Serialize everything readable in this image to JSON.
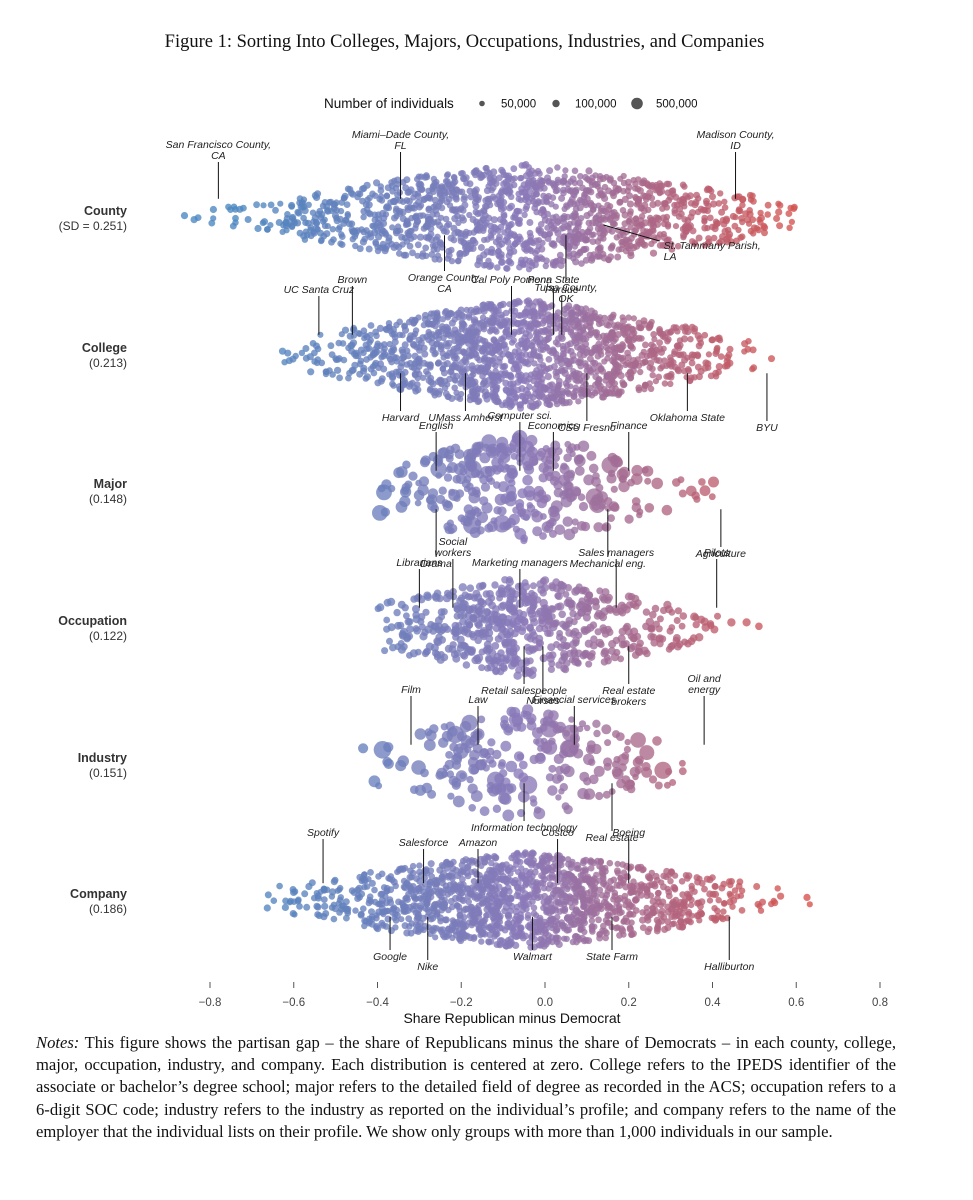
{
  "figure": {
    "title": "Figure 1: Sorting Into Colleges, Majors, Occupations, Industries, and Companies",
    "notes_lead": "Notes:",
    "notes_body": "This figure shows the partisan gap – the share of Republicans minus the share of Democrats – in each county, college, major, occupation, industry, and company. Each distribution is centered at zero. College refers to the IPEDS identifier of the associate or bachelor’s degree school; major refers to the detailed field of degree as recorded in the ACS; occupation refers to a 6-digit SOC code; industry refers to the industry as reported on the individual’s profile; and company refers to the name of the employer that the individual lists on their profile. We show only groups with more than 1,000 individuals in our sample."
  },
  "chart_data": {
    "type": "scatter",
    "subtype": "beeswarm",
    "xlabel": "Share Republican minus Democrat",
    "xlim": [
      -0.8,
      0.8
    ],
    "xticks": [
      -0.8,
      -0.6,
      -0.4,
      -0.2,
      0.0,
      0.2,
      0.4,
      0.6,
      0.8
    ],
    "xtick_labels": [
      "−0.8",
      "−0.6",
      "−0.4",
      "−0.2",
      "0.0",
      "0.2",
      "0.4",
      "0.6",
      "0.8"
    ],
    "color_scale": {
      "low": "#4a86c0",
      "mid": "#8a79b8",
      "high": "#df4c3d"
    },
    "legend": {
      "title": "Number of individuals",
      "entries": [
        {
          "label": "50,000",
          "value": 50000
        },
        {
          "label": "100,000",
          "value": 100000
        },
        {
          "label": "500,000",
          "value": 500000
        }
      ]
    },
    "rows": [
      {
        "name": "County",
        "sd_label": "(SD = 0.251)",
        "sd": 0.251,
        "range": [
          -0.9,
          0.6
        ],
        "density": 1.0,
        "spread": 0.62,
        "count": 1400,
        "size": "small",
        "labels": [
          {
            "text": "San Francisco County, CA",
            "lines": [
              "San Francisco County,",
              "CA"
            ],
            "x": -0.78,
            "pos": "above"
          },
          {
            "text": "Miami–Dade County, FL",
            "lines": [
              "Miami–Dade County,",
              "FL"
            ],
            "x": -0.345,
            "pos": "above"
          },
          {
            "text": "Orange County, CA",
            "lines": [
              "Orange County,",
              "CA"
            ],
            "x": -0.24,
            "pos": "below"
          },
          {
            "text": "Tulsa County, OK",
            "lines": [
              "Tulsa County,",
              "OK"
            ],
            "x": 0.05,
            "pos": "below"
          },
          {
            "text": "St. Tammany Parish, LA",
            "lines": [
              "St. Tammany Parish,",
              "LA"
            ],
            "x": 0.14,
            "pos": "right"
          },
          {
            "text": "Madison County, ID",
            "lines": [
              "Madison County,",
              "ID"
            ],
            "x": 0.455,
            "pos": "above"
          }
        ]
      },
      {
        "name": "College",
        "sd_label": "(0.213)",
        "sd": 0.213,
        "range": [
          -0.66,
          0.68
        ],
        "density": 1.0,
        "spread": 0.6,
        "count": 1500,
        "size": "small",
        "labels": [
          {
            "text": "UC Santa Cruz",
            "lines": [
              "UC Santa Cruz"
            ],
            "x": -0.54,
            "pos": "above"
          },
          {
            "text": "Brown",
            "lines": [
              "Brown"
            ],
            "x": -0.46,
            "pos": "above"
          },
          {
            "text": "Harvard",
            "lines": [
              "Harvard"
            ],
            "x": -0.345,
            "pos": "below"
          },
          {
            "text": "Cal Poly Pomona",
            "lines": [
              "Cal Poly Pomona"
            ],
            "x": -0.08,
            "pos": "above"
          },
          {
            "text": "UMass Amherst",
            "lines": [
              "UMass Amherst"
            ],
            "x": -0.19,
            "pos": "below"
          },
          {
            "text": "Penn State",
            "lines": [
              "Penn State"
            ],
            "x": 0.02,
            "pos": "above"
          },
          {
            "text": "Purdue",
            "lines": [
              "Purdue"
            ],
            "x": 0.04,
            "pos": "above"
          },
          {
            "text": "CSU Fresno",
            "lines": [
              "CSU Fresno"
            ],
            "x": 0.1,
            "pos": "below"
          },
          {
            "text": "Oklahoma State",
            "lines": [
              "Oklahoma State"
            ],
            "x": 0.34,
            "pos": "below"
          },
          {
            "text": "BYU",
            "lines": [
              "BYU"
            ],
            "x": 0.53,
            "pos": "below"
          }
        ]
      },
      {
        "name": "Major",
        "sd_label": "(0.148)",
        "sd": 0.148,
        "range": [
          -0.4,
          0.52
        ],
        "density": 0.55,
        "spread": 0.6,
        "count": 330,
        "size": "large",
        "labels": [
          {
            "text": "Economics",
            "lines": [
              "Economics"
            ],
            "x": 0.02,
            "pos": "above"
          },
          {
            "text": "Computer sci.",
            "lines": [
              "Computer sci."
            ],
            "x": -0.06,
            "pos": "above"
          },
          {
            "text": "English",
            "lines": [
              "English"
            ],
            "x": -0.26,
            "pos": "above"
          },
          {
            "text": "Drama",
            "lines": [
              "Drama"
            ],
            "x": -0.26,
            "pos": "below"
          },
          {
            "text": "Finance",
            "lines": [
              "Finance"
            ],
            "x": 0.2,
            "pos": "above"
          },
          {
            "text": "Mechanical eng.",
            "lines": [
              "Mechanical eng."
            ],
            "x": 0.15,
            "pos": "below"
          },
          {
            "text": "Agriculture",
            "lines": [
              "Agriculture"
            ],
            "x": 0.42,
            "pos": "below"
          }
        ]
      },
      {
        "name": "Occupation",
        "sd_label": "(0.122)",
        "sd": 0.122,
        "range": [
          -0.4,
          0.53
        ],
        "density": 0.8,
        "spread": 0.55,
        "count": 650,
        "size": "medium",
        "labels": [
          {
            "text": "Marketing managers",
            "lines": [
              "Marketing managers"
            ],
            "x": -0.06,
            "pos": "above"
          },
          {
            "text": "Social workers",
            "lines": [
              "Social",
              "workers"
            ],
            "x": -0.22,
            "pos": "above"
          },
          {
            "text": "Librarians",
            "lines": [
              "Librarians"
            ],
            "x": -0.3,
            "pos": "above"
          },
          {
            "text": "Nurses",
            "lines": [
              "Nurses"
            ],
            "x": -0.005,
            "pos": "below"
          },
          {
            "text": "Retail salespeople",
            "lines": [
              "Retail salespeople"
            ],
            "x": -0.05,
            "pos": "below"
          },
          {
            "text": "Sales managers",
            "lines": [
              "Sales managers"
            ],
            "x": 0.17,
            "pos": "above"
          },
          {
            "text": "Real estate brokers",
            "lines": [
              "Real estate",
              "brokers"
            ],
            "x": 0.2,
            "pos": "below"
          },
          {
            "text": "Pilots",
            "lines": [
              "Pilots"
            ],
            "x": 0.41,
            "pos": "above"
          }
        ]
      },
      {
        "name": "Industry",
        "sd_label": "(0.151)",
        "sd": 0.151,
        "range": [
          -0.44,
          0.49
        ],
        "density": 0.55,
        "spread": 0.6,
        "count": 240,
        "size": "large",
        "labels": [
          {
            "text": "Law",
            "lines": [
              "Law"
            ],
            "x": -0.16,
            "pos": "above"
          },
          {
            "text": "Film",
            "lines": [
              "Film"
            ],
            "x": -0.32,
            "pos": "above"
          },
          {
            "text": "Financial services",
            "lines": [
              "Financial services"
            ],
            "x": 0.07,
            "pos": "above"
          },
          {
            "text": "Oil and energy",
            "lines": [
              "Oil and",
              "energy"
            ],
            "x": 0.38,
            "pos": "above"
          },
          {
            "text": "Information technology",
            "lines": [
              "Information technology"
            ],
            "x": -0.05,
            "pos": "below"
          },
          {
            "text": "Real estate",
            "lines": [
              "Real estate"
            ],
            "x": 0.16,
            "pos": "below"
          }
        ]
      },
      {
        "name": "Company",
        "sd_label": "(0.186)",
        "sd": 0.186,
        "range": [
          -0.7,
          0.74
        ],
        "density": 1.0,
        "spread": 0.6,
        "count": 1500,
        "size": "small",
        "labels": [
          {
            "text": "Amazon",
            "lines": [
              "Amazon"
            ],
            "x": -0.16,
            "pos": "above"
          },
          {
            "text": "Costco",
            "lines": [
              "Costco"
            ],
            "x": 0.03,
            "pos": "above"
          },
          {
            "text": "Salesforce",
            "lines": [
              "Salesforce"
            ],
            "x": -0.29,
            "pos": "above"
          },
          {
            "text": "Spotify",
            "lines": [
              "Spotify"
            ],
            "x": -0.53,
            "pos": "above"
          },
          {
            "text": "Google",
            "lines": [
              "Google"
            ],
            "x": -0.37,
            "pos": "below"
          },
          {
            "text": "Nike",
            "lines": [
              "Nike"
            ],
            "x": -0.28,
            "pos": "below"
          },
          {
            "text": "Walmart",
            "lines": [
              "Walmart"
            ],
            "x": -0.03,
            "pos": "below"
          },
          {
            "text": "Boeing",
            "lines": [
              "Boeing"
            ],
            "x": 0.2,
            "pos": "above"
          },
          {
            "text": "State Farm",
            "lines": [
              "State Farm"
            ],
            "x": 0.16,
            "pos": "below"
          },
          {
            "text": "Halliburton",
            "lines": [
              "Halliburton"
            ],
            "x": 0.44,
            "pos": "below"
          }
        ]
      }
    ]
  }
}
